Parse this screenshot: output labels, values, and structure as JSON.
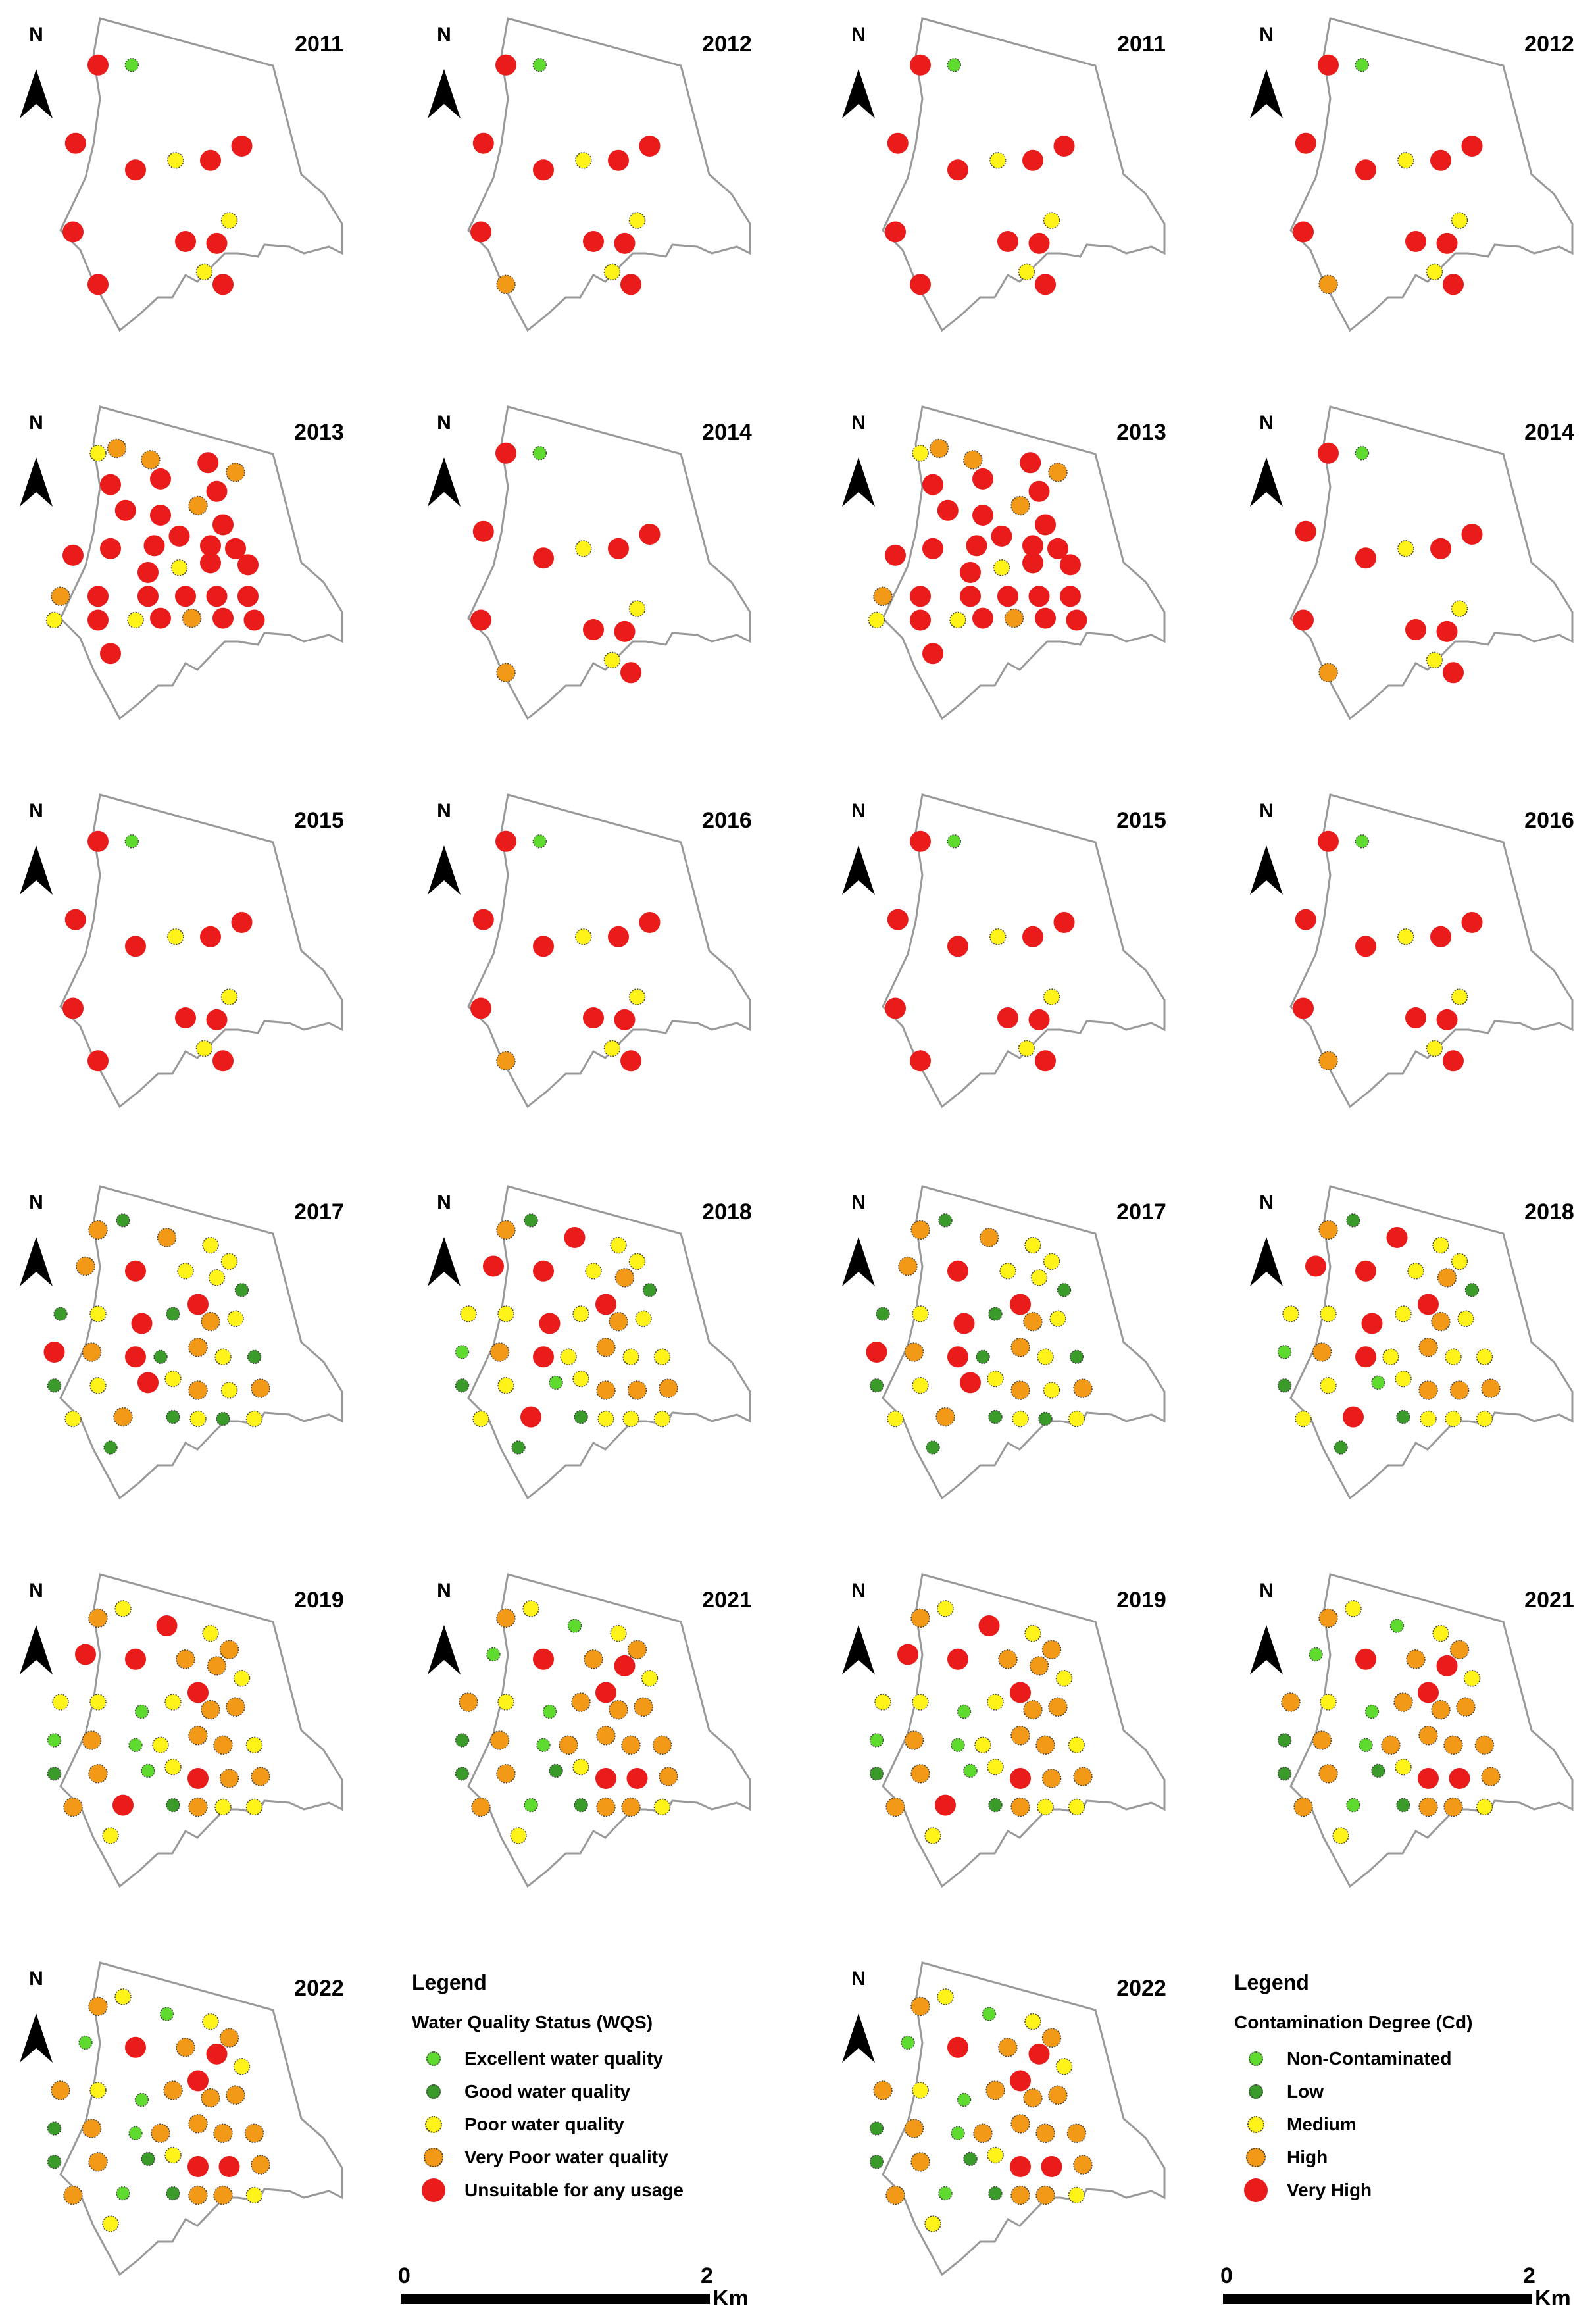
{
  "colors": {
    "wqs": [
      "#5edb2e",
      "#3a9a2a",
      "#fff31a",
      "#f29a17",
      "#ea1b1b"
    ],
    "cd": [
      "#5edb2e",
      "#3a9a2a",
      "#fff31a",
      "#f29a17",
      "#ea1b1b"
    ]
  },
  "north_label": "N",
  "panels": [
    {
      "year": "2011",
      "set": "wqs",
      "pattern": "A"
    },
    {
      "year": "2012",
      "set": "wqs",
      "pattern": "B"
    },
    {
      "year": "2011",
      "set": "cd",
      "pattern": "A"
    },
    {
      "year": "2012",
      "set": "cd",
      "pattern": "B"
    },
    {
      "year": "2013",
      "set": "wqs",
      "pattern": "C"
    },
    {
      "year": "2014",
      "set": "wqs",
      "pattern": "B"
    },
    {
      "year": "2013",
      "set": "cd",
      "pattern": "C"
    },
    {
      "year": "2014",
      "set": "cd",
      "pattern": "B"
    },
    {
      "year": "2015",
      "set": "wqs",
      "pattern": "A"
    },
    {
      "year": "2016",
      "set": "wqs",
      "pattern": "B"
    },
    {
      "year": "2015",
      "set": "cd",
      "pattern": "A"
    },
    {
      "year": "2016",
      "set": "cd",
      "pattern": "B"
    },
    {
      "year": "2017",
      "set": "wqs",
      "pattern": "D"
    },
    {
      "year": "2018",
      "set": "wqs",
      "pattern": "D"
    },
    {
      "year": "2017",
      "set": "cd",
      "pattern": "D"
    },
    {
      "year": "2018",
      "set": "cd",
      "pattern": "D"
    },
    {
      "year": "2019",
      "set": "wqs",
      "pattern": "D"
    },
    {
      "year": "2021",
      "set": "wqs",
      "pattern": "D"
    },
    {
      "year": "2019",
      "set": "cd",
      "pattern": "D"
    },
    {
      "year": "2021",
      "set": "cd",
      "pattern": "D"
    },
    {
      "year": "2022",
      "set": "wqs",
      "pattern": "D"
    },
    {
      "year": "2022",
      "set": "cd",
      "pattern": "D"
    }
  ],
  "legend_wqs": {
    "title": "Legend",
    "subtitle": "Water Quality Status (WQS)",
    "items": [
      "Excellent water quality",
      "Good water quality",
      "Poor water quality",
      "Very Poor water quality",
      "Unsuitable for any usage"
    ]
  },
  "legend_cd": {
    "title": "Legend",
    "subtitle": "Contamination Degree (Cd)",
    "items": [
      "Non-Contaminated",
      "Low",
      "Medium",
      "High",
      "Very High"
    ]
  },
  "scale": {
    "start": "0",
    "end": "2",
    "unit": "Km"
  }
}
